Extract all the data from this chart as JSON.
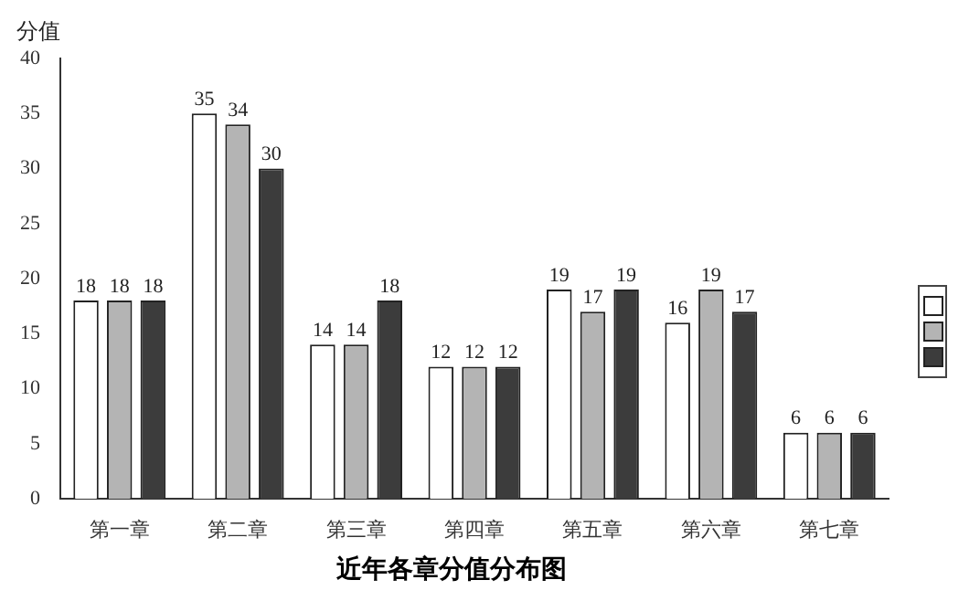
{
  "chart_data": {
    "type": "bar",
    "title": "近年各章分值分布图",
    "ylabel": "分值",
    "categories": [
      "第一章",
      "第二章",
      "第三章",
      "第四章",
      "第五章",
      "第六章",
      "第七章"
    ],
    "series": [
      {
        "color": "#ffffff",
        "values": [
          18,
          35,
          14,
          12,
          19,
          16,
          6
        ]
      },
      {
        "color": "#b4b4b4",
        "values": [
          18,
          34,
          14,
          12,
          17,
          19,
          6
        ]
      },
      {
        "color": "#3c3c3c",
        "values": [
          18,
          30,
          18,
          12,
          19,
          17,
          6
        ]
      }
    ],
    "ylim": [
      0,
      40
    ],
    "yticks": [
      0,
      5,
      10,
      15,
      20,
      25,
      30,
      35,
      40
    ],
    "grid": false,
    "data_labels": true
  }
}
